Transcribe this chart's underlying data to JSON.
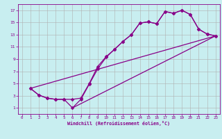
{
  "xlabel": "Windchill (Refroidissement éolien,°C)",
  "bg_color": "#c8eef0",
  "grid_color": "#b0b0b0",
  "line_color": "#880088",
  "markersize": 2.5,
  "linewidth": 0.9,
  "xlim": [
    -0.5,
    23.5
  ],
  "ylim": [
    0,
    18
  ],
  "xticks": [
    0,
    1,
    2,
    3,
    4,
    5,
    6,
    7,
    8,
    9,
    10,
    11,
    12,
    13,
    14,
    15,
    16,
    17,
    18,
    19,
    20,
    21,
    22,
    23
  ],
  "yticks": [
    1,
    3,
    5,
    7,
    9,
    11,
    13,
    15,
    17
  ],
  "line1_x": [
    1,
    2,
    3,
    4,
    5,
    6,
    7,
    8,
    9,
    10,
    11,
    12,
    13,
    14,
    15,
    16,
    17,
    18,
    19,
    20,
    21,
    22,
    23
  ],
  "line1_y": [
    4.2,
    3.1,
    2.6,
    2.4,
    2.4,
    2.4,
    2.6,
    5.0,
    7.8,
    9.4,
    10.6,
    11.9,
    13.0,
    14.9,
    15.1,
    14.8,
    16.8,
    16.5,
    17.0,
    16.3,
    13.9,
    13.1,
    12.8
  ],
  "line2_x": [
    1,
    2,
    3,
    4,
    5,
    6,
    7,
    8,
    9,
    10,
    11,
    12,
    13,
    14,
    15,
    16,
    17,
    18,
    19,
    20,
    21,
    22,
    23
  ],
  "line2_y": [
    4.2,
    3.1,
    2.6,
    2.4,
    2.4,
    1.0,
    2.4,
    4.9,
    7.4,
    9.3,
    10.6,
    11.9,
    13.0,
    14.9,
    15.1,
    14.8,
    16.8,
    16.5,
    17.0,
    16.3,
    13.9,
    13.1,
    12.8
  ],
  "line3_x": [
    1,
    23
  ],
  "line3_y": [
    4.2,
    12.8
  ],
  "line4_x": [
    6,
    23
  ],
  "line4_y": [
    1.0,
    12.8
  ]
}
